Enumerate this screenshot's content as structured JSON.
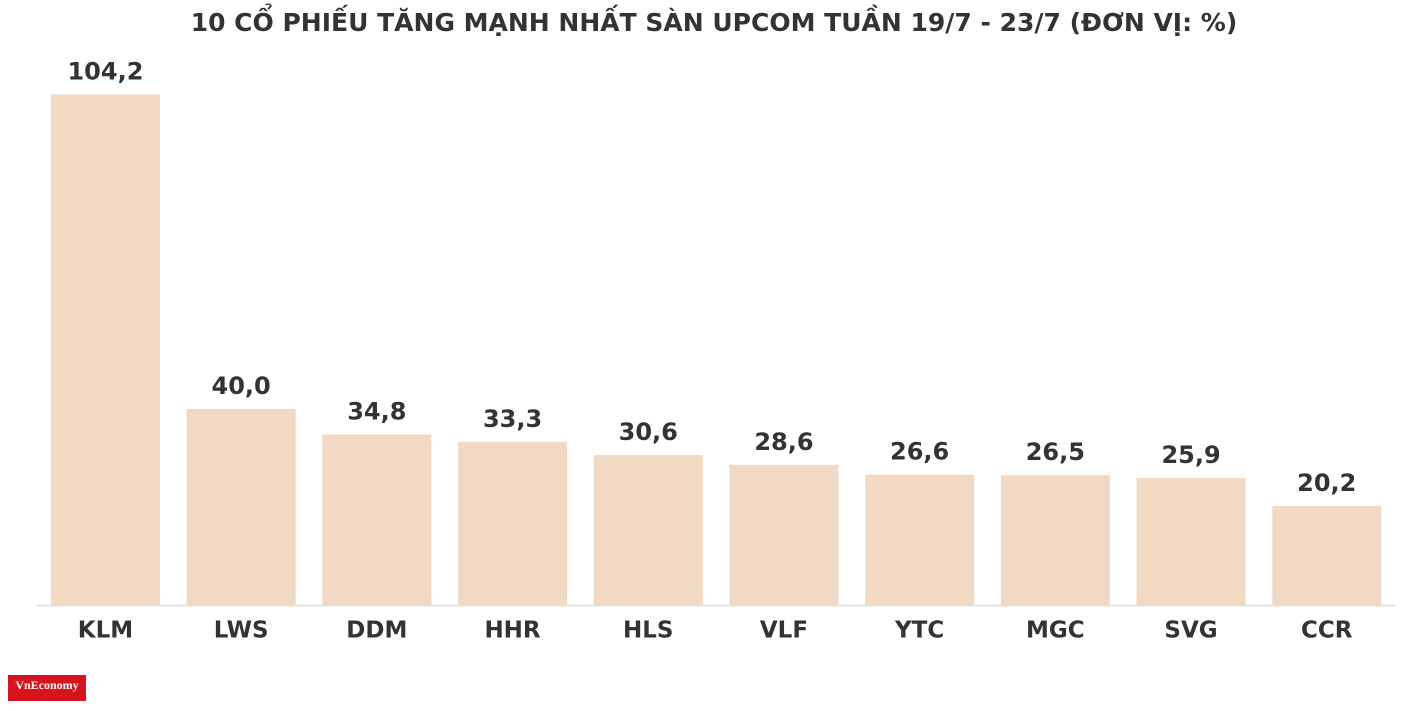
{
  "chart_data": {
    "type": "bar",
    "title": "10 CỔ PHIẾU TĂNG MẠNH NHẤT SÀN UPCOM TUẦN 19/7 - 23/7 (ĐƠN VỊ: %)",
    "categories": [
      "KLM",
      "LWS",
      "DDM",
      "HHR",
      "HLS",
      "VLF",
      "YTC",
      "MGC",
      "SVG",
      "CCR"
    ],
    "values": [
      104.2,
      40.0,
      34.8,
      33.3,
      30.6,
      28.6,
      26.6,
      26.5,
      25.9,
      20.2
    ],
    "value_labels": [
      "104,2",
      "40,0",
      "34,8",
      "33,3",
      "30,6",
      "28,6",
      "26,6",
      "26,5",
      "25,9",
      "20,2"
    ],
    "color": "#f2d9c4",
    "ylim": [
      0,
      110
    ]
  },
  "logo": "VnEconomy"
}
